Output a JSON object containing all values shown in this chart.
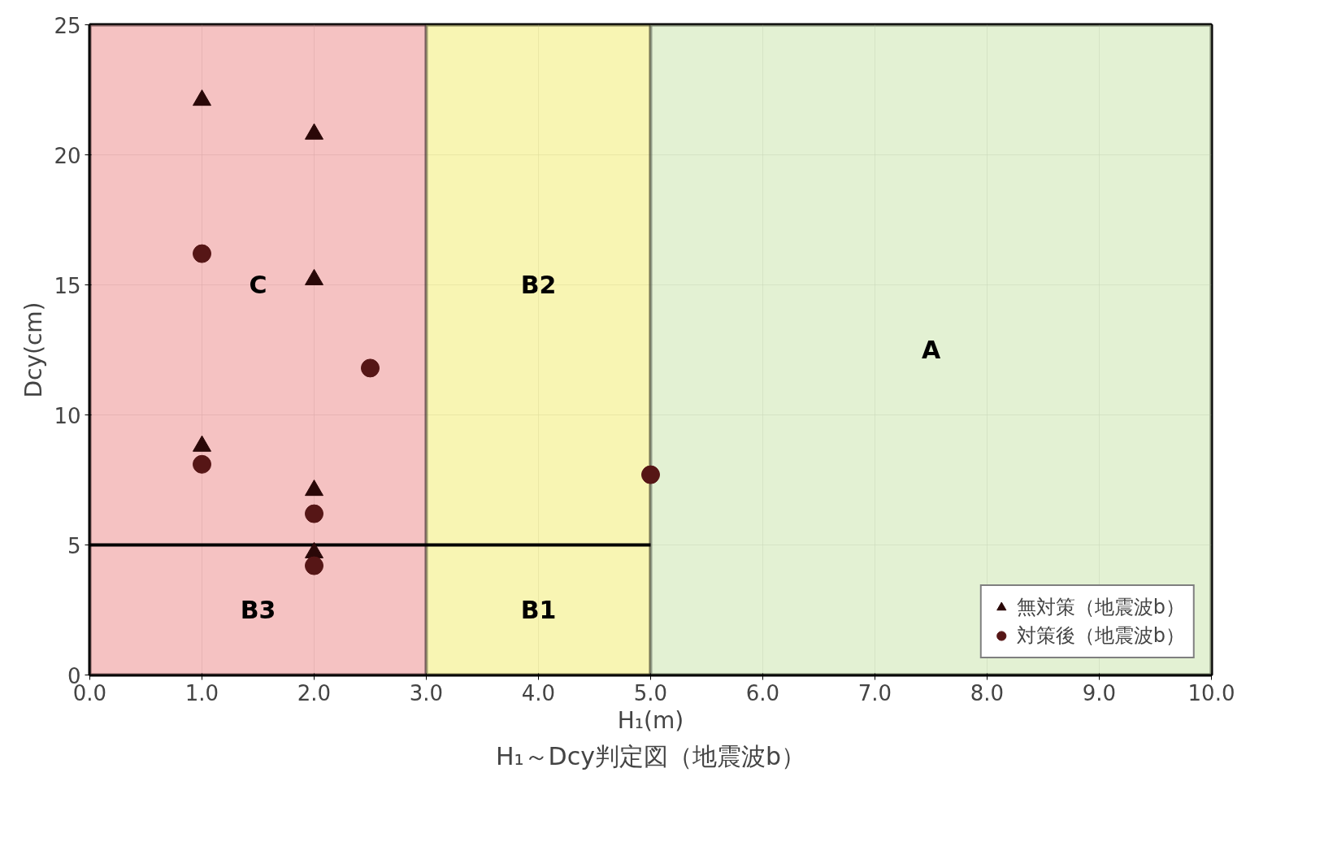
{
  "chart_data": {
    "type": "scatter",
    "title": "H₁～Dcy判定図（地震波b）",
    "xlabel": "H₁(m)",
    "ylabel": "Dcy(cm)",
    "xlim": [
      0,
      10
    ],
    "ylim": [
      0,
      25
    ],
    "xticks": [
      {
        "value": 0,
        "label": "0.0"
      },
      {
        "value": 1,
        "label": "1.0"
      },
      {
        "value": 2,
        "label": "2.0"
      },
      {
        "value": 3,
        "label": "3.0"
      },
      {
        "value": 4,
        "label": "4.0"
      },
      {
        "value": 5,
        "label": "5.0"
      },
      {
        "value": 6,
        "label": "6.0"
      },
      {
        "value": 7,
        "label": "7.0"
      },
      {
        "value": 8,
        "label": "8.0"
      },
      {
        "value": 9,
        "label": "9.0"
      },
      {
        "value": 10,
        "label": "10.0"
      }
    ],
    "yticks": [
      0,
      5,
      10,
      15,
      20,
      25
    ],
    "grid": true,
    "legend": "bottom right",
    "series": [
      {
        "name": "無対策（地震波b）",
        "color": "#2a0808",
        "marker": "triangle",
        "x": [
          1,
          2,
          2,
          1,
          2,
          2
        ],
        "values": [
          22.1,
          20.8,
          15.2,
          8.8,
          7.1,
          4.7
        ]
      },
      {
        "name": "対策後（地震波b）",
        "color": "#561616",
        "marker": "circle",
        "x": [
          1,
          2.5,
          1,
          2,
          2,
          5
        ],
        "values": [
          16.2,
          11.8,
          8.1,
          6.2,
          4.2,
          7.7
        ]
      }
    ],
    "bands": [
      {
        "axis": "x",
        "from": 0,
        "to": 3,
        "color": "#f2b3b3"
      },
      {
        "axis": "x",
        "from": 3,
        "to": 5,
        "color": "#f6f2a0"
      },
      {
        "axis": "x",
        "from": 5,
        "to": 10,
        "color": "#dcedc8"
      }
    ],
    "ref_lines": [
      {
        "axis": "y",
        "value": 5
      }
    ],
    "annotations": [
      "C",
      "B2",
      "A",
      "B3",
      "B1"
    ]
  }
}
